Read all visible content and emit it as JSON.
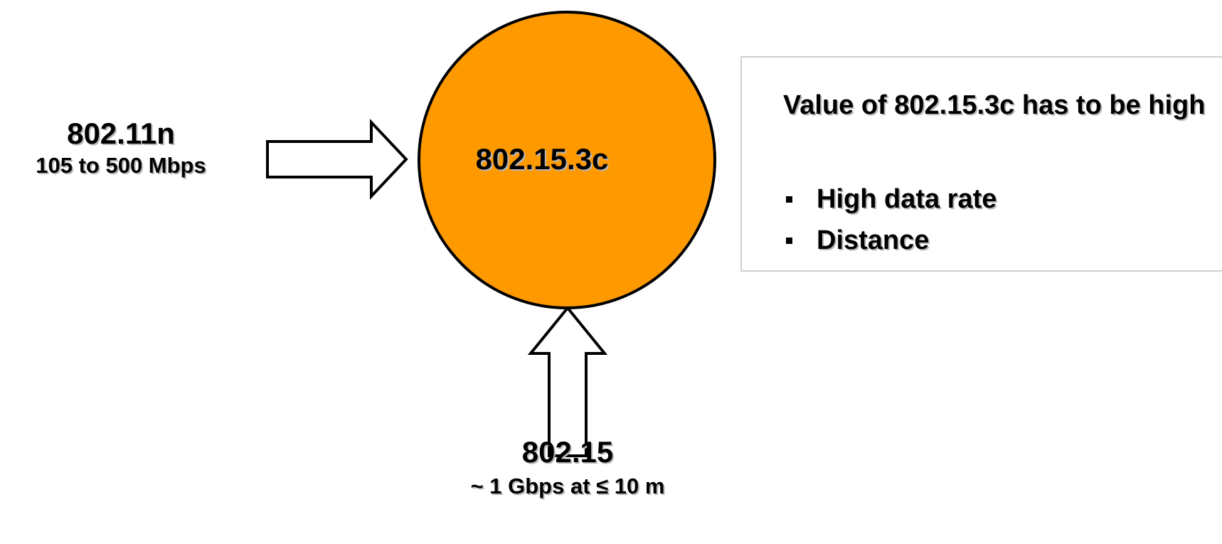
{
  "center_node": {
    "label": "802.15.3c",
    "fill_color": "#ff9900"
  },
  "left_input": {
    "title": "802.11n",
    "subtitle": "105 to 500 Mbps"
  },
  "bottom_input": {
    "title": "802.15",
    "subtitle": "~ 1 Gbps at ≤ 10 m"
  },
  "info_box": {
    "title": "Value of 802.15.3c has to be high",
    "items": [
      "High data rate",
      "Distance"
    ]
  }
}
